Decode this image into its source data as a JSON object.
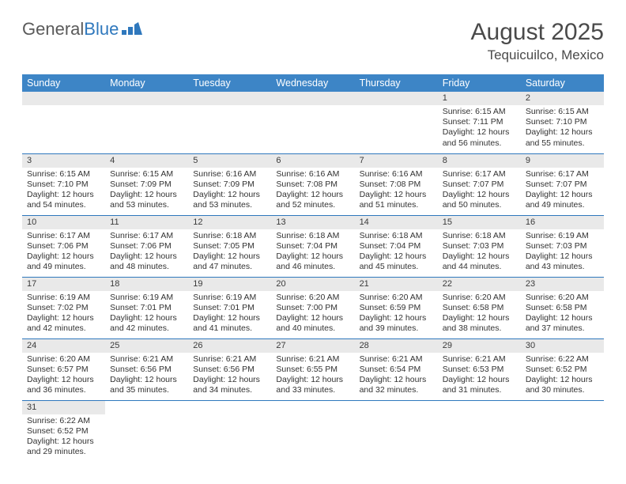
{
  "logo": {
    "text1": "General",
    "text2": "Blue"
  },
  "title": "August 2025",
  "location": "Tequicuilco, Mexico",
  "colors": {
    "header_bg": "#3d85c6",
    "header_fg": "#ffffff",
    "row_divider": "#2f78bd",
    "daynum_bg": "#e9e9e9",
    "text": "#323232",
    "logo_gray": "#5a5a5a",
    "logo_blue": "#2f78bd"
  },
  "weekdays": [
    "Sunday",
    "Monday",
    "Tuesday",
    "Wednesday",
    "Thursday",
    "Friday",
    "Saturday"
  ],
  "weeks": [
    [
      null,
      null,
      null,
      null,
      null,
      {
        "n": "1",
        "sr": "6:15 AM",
        "ss": "7:11 PM",
        "dl": "12 hours and 56 minutes."
      },
      {
        "n": "2",
        "sr": "6:15 AM",
        "ss": "7:10 PM",
        "dl": "12 hours and 55 minutes."
      }
    ],
    [
      {
        "n": "3",
        "sr": "6:15 AM",
        "ss": "7:10 PM",
        "dl": "12 hours and 54 minutes."
      },
      {
        "n": "4",
        "sr": "6:15 AM",
        "ss": "7:09 PM",
        "dl": "12 hours and 53 minutes."
      },
      {
        "n": "5",
        "sr": "6:16 AM",
        "ss": "7:09 PM",
        "dl": "12 hours and 53 minutes."
      },
      {
        "n": "6",
        "sr": "6:16 AM",
        "ss": "7:08 PM",
        "dl": "12 hours and 52 minutes."
      },
      {
        "n": "7",
        "sr": "6:16 AM",
        "ss": "7:08 PM",
        "dl": "12 hours and 51 minutes."
      },
      {
        "n": "8",
        "sr": "6:17 AM",
        "ss": "7:07 PM",
        "dl": "12 hours and 50 minutes."
      },
      {
        "n": "9",
        "sr": "6:17 AM",
        "ss": "7:07 PM",
        "dl": "12 hours and 49 minutes."
      }
    ],
    [
      {
        "n": "10",
        "sr": "6:17 AM",
        "ss": "7:06 PM",
        "dl": "12 hours and 49 minutes."
      },
      {
        "n": "11",
        "sr": "6:17 AM",
        "ss": "7:06 PM",
        "dl": "12 hours and 48 minutes."
      },
      {
        "n": "12",
        "sr": "6:18 AM",
        "ss": "7:05 PM",
        "dl": "12 hours and 47 minutes."
      },
      {
        "n": "13",
        "sr": "6:18 AM",
        "ss": "7:04 PM",
        "dl": "12 hours and 46 minutes."
      },
      {
        "n": "14",
        "sr": "6:18 AM",
        "ss": "7:04 PM",
        "dl": "12 hours and 45 minutes."
      },
      {
        "n": "15",
        "sr": "6:18 AM",
        "ss": "7:03 PM",
        "dl": "12 hours and 44 minutes."
      },
      {
        "n": "16",
        "sr": "6:19 AM",
        "ss": "7:03 PM",
        "dl": "12 hours and 43 minutes."
      }
    ],
    [
      {
        "n": "17",
        "sr": "6:19 AM",
        "ss": "7:02 PM",
        "dl": "12 hours and 42 minutes."
      },
      {
        "n": "18",
        "sr": "6:19 AM",
        "ss": "7:01 PM",
        "dl": "12 hours and 42 minutes."
      },
      {
        "n": "19",
        "sr": "6:19 AM",
        "ss": "7:01 PM",
        "dl": "12 hours and 41 minutes."
      },
      {
        "n": "20",
        "sr": "6:20 AM",
        "ss": "7:00 PM",
        "dl": "12 hours and 40 minutes."
      },
      {
        "n": "21",
        "sr": "6:20 AM",
        "ss": "6:59 PM",
        "dl": "12 hours and 39 minutes."
      },
      {
        "n": "22",
        "sr": "6:20 AM",
        "ss": "6:58 PM",
        "dl": "12 hours and 38 minutes."
      },
      {
        "n": "23",
        "sr": "6:20 AM",
        "ss": "6:58 PM",
        "dl": "12 hours and 37 minutes."
      }
    ],
    [
      {
        "n": "24",
        "sr": "6:20 AM",
        "ss": "6:57 PM",
        "dl": "12 hours and 36 minutes."
      },
      {
        "n": "25",
        "sr": "6:21 AM",
        "ss": "6:56 PM",
        "dl": "12 hours and 35 minutes."
      },
      {
        "n": "26",
        "sr": "6:21 AM",
        "ss": "6:56 PM",
        "dl": "12 hours and 34 minutes."
      },
      {
        "n": "27",
        "sr": "6:21 AM",
        "ss": "6:55 PM",
        "dl": "12 hours and 33 minutes."
      },
      {
        "n": "28",
        "sr": "6:21 AM",
        "ss": "6:54 PM",
        "dl": "12 hours and 32 minutes."
      },
      {
        "n": "29",
        "sr": "6:21 AM",
        "ss": "6:53 PM",
        "dl": "12 hours and 31 minutes."
      },
      {
        "n": "30",
        "sr": "6:22 AM",
        "ss": "6:52 PM",
        "dl": "12 hours and 30 minutes."
      }
    ],
    [
      {
        "n": "31",
        "sr": "6:22 AM",
        "ss": "6:52 PM",
        "dl": "12 hours and 29 minutes."
      },
      null,
      null,
      null,
      null,
      null,
      null
    ]
  ],
  "labels": {
    "sunrise": "Sunrise:",
    "sunset": "Sunset:",
    "daylight": "Daylight:"
  }
}
